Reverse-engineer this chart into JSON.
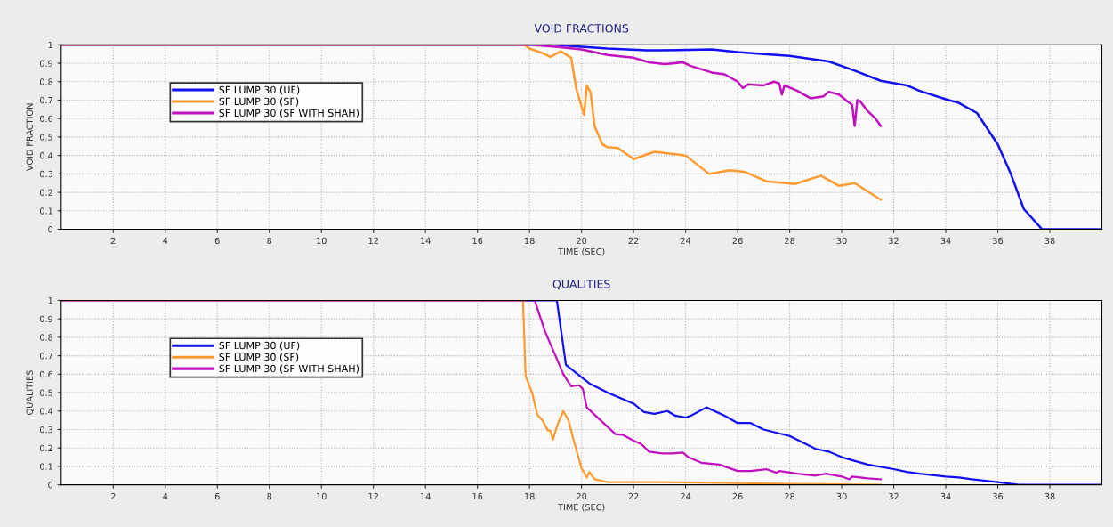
{
  "chart_data": [
    {
      "type": "line",
      "title": "VOID FRACTIONS",
      "xlabel": "TIME (SEC)",
      "ylabel": "VOID FRACTION",
      "xlim": [
        0,
        40
      ],
      "xticks": [
        2,
        4,
        6,
        8,
        10,
        12,
        14,
        16,
        18,
        20,
        22,
        24,
        26,
        28,
        30,
        32,
        34,
        36,
        38
      ],
      "ylim": [
        0,
        1
      ],
      "yticks": [
        0,
        0.1,
        0.2,
        0.3,
        0.4,
        0.5,
        0.6,
        0.7,
        0.8,
        0.9,
        1
      ],
      "grid": true,
      "legend": "top left",
      "line_style": "solid",
      "marker": "none",
      "series": [
        {
          "name": "SF LUMP 30 (UF)",
          "color": "#1010f0",
          "x": [
            0,
            19,
            20,
            21,
            22.5,
            23,
            25,
            26,
            27,
            28,
            29.5,
            30.5,
            31.5,
            32.5,
            33,
            34,
            34.5,
            35.2,
            36,
            36.5,
            37,
            37.7,
            40
          ],
          "values": [
            1,
            1,
            0.99,
            0.98,
            0.97,
            0.97,
            0.975,
            0.96,
            0.95,
            0.94,
            0.91,
            0.86,
            0.805,
            0.78,
            0.75,
            0.705,
            0.685,
            0.63,
            0.46,
            0.3,
            0.11,
            0,
            0
          ]
        },
        {
          "name": "SF LUMP 30 (SF)",
          "color": "#ff9a30",
          "x": [
            0,
            17.8,
            18,
            18.5,
            18.8,
            19.2,
            19.6,
            19.8,
            20.1,
            20.2,
            20.35,
            20.5,
            20.8,
            21,
            21.4,
            22,
            22.8,
            24,
            24.9,
            25.7,
            26.3,
            27.1,
            28.2,
            29.2,
            29.9,
            30.5,
            31.5
          ],
          "values": [
            1,
            1,
            0.98,
            0.955,
            0.935,
            0.965,
            0.93,
            0.76,
            0.62,
            0.78,
            0.74,
            0.56,
            0.46,
            0.445,
            0.44,
            0.38,
            0.42,
            0.4,
            0.3,
            0.32,
            0.31,
            0.26,
            0.245,
            0.29,
            0.235,
            0.25,
            0.16
          ]
        },
        {
          "name": "SF LUMP 30 (SF WITH SHAH)",
          "color": "#c010c0",
          "x": [
            0,
            18,
            19,
            20,
            21,
            22,
            22.6,
            23.2,
            23.9,
            24.2,
            25,
            25.5,
            26,
            26.2,
            26.4,
            27,
            27.4,
            27.6,
            27.7,
            27.8,
            28.3,
            28.8,
            29.3,
            29.5,
            29.9,
            30.2,
            30.4,
            30.5,
            30.6,
            30.7,
            31,
            31.3,
            31.5
          ],
          "values": [
            1,
            1,
            0.99,
            0.975,
            0.945,
            0.93,
            0.905,
            0.895,
            0.905,
            0.885,
            0.85,
            0.84,
            0.8,
            0.765,
            0.785,
            0.78,
            0.8,
            0.79,
            0.73,
            0.78,
            0.75,
            0.71,
            0.72,
            0.745,
            0.73,
            0.695,
            0.675,
            0.56,
            0.7,
            0.695,
            0.64,
            0.6,
            0.56
          ]
        }
      ]
    },
    {
      "type": "line",
      "title": "QUALITIES",
      "xlabel": "TIME (SEC)",
      "ylabel": "QUALITIES",
      "xlim": [
        0,
        40
      ],
      "xticks": [
        2,
        4,
        6,
        8,
        10,
        12,
        14,
        16,
        18,
        20,
        22,
        24,
        26,
        28,
        30,
        32,
        34,
        36,
        38
      ],
      "ylim": [
        0,
        1
      ],
      "yticks": [
        0,
        0.1,
        0.2,
        0.3,
        0.4,
        0.5,
        0.6,
        0.7,
        0.8,
        0.9,
        1
      ],
      "grid": true,
      "legend": "top left",
      "line_style": "solid",
      "marker": "none",
      "series": [
        {
          "name": "SF LUMP 30 (UF)",
          "color": "#1010f0",
          "x": [
            0,
            19.05,
            19.4,
            20.3,
            21,
            22,
            22.4,
            22.8,
            23.3,
            23.6,
            24,
            24.2,
            24.8,
            25.5,
            26,
            26.5,
            27,
            28,
            29,
            29.5,
            30,
            31,
            32,
            32.5,
            33,
            34,
            34.5,
            35,
            36,
            36.8,
            40
          ],
          "values": [
            1,
            1,
            0.65,
            0.55,
            0.5,
            0.44,
            0.395,
            0.385,
            0.4,
            0.375,
            0.365,
            0.375,
            0.42,
            0.375,
            0.335,
            0.335,
            0.3,
            0.265,
            0.195,
            0.18,
            0.15,
            0.11,
            0.085,
            0.07,
            0.06,
            0.045,
            0.04,
            0.03,
            0.015,
            0,
            0
          ]
        },
        {
          "name": "SF LUMP 30 (SF)",
          "color": "#ff9a30",
          "x": [
            0,
            17.75,
            17.85,
            18.1,
            18.3,
            18.5,
            18.7,
            18.8,
            18.9,
            19.1,
            19.3,
            19.5,
            19.7,
            20,
            20.2,
            20.3,
            20.5,
            21,
            23,
            26,
            28,
            31.5
          ],
          "values": [
            1,
            1,
            0.59,
            0.5,
            0.38,
            0.35,
            0.295,
            0.295,
            0.245,
            0.335,
            0.4,
            0.35,
            0.24,
            0.09,
            0.04,
            0.07,
            0.03,
            0.015,
            0.015,
            0.01,
            0.005,
            0
          ]
        },
        {
          "name": "SF LUMP 30 (SF WITH SHAH)",
          "color": "#c010c0",
          "x": [
            0,
            18.2,
            18.6,
            19,
            19.3,
            19.6,
            19.9,
            20.05,
            20.2,
            20.5,
            21,
            21.3,
            21.6,
            22,
            22.3,
            22.6,
            23.1,
            23.5,
            23.9,
            24.1,
            24.6,
            25.3,
            26,
            26.5,
            27.1,
            27.5,
            27.6,
            28.3,
            29,
            29.4,
            30,
            30.3,
            30.4,
            31,
            31.5
          ],
          "values": [
            1,
            1,
            0.83,
            0.7,
            0.6,
            0.535,
            0.54,
            0.52,
            0.42,
            0.38,
            0.315,
            0.275,
            0.27,
            0.24,
            0.22,
            0.18,
            0.17,
            0.17,
            0.175,
            0.15,
            0.12,
            0.11,
            0.075,
            0.075,
            0.085,
            0.065,
            0.075,
            0.06,
            0.05,
            0.06,
            0.045,
            0.03,
            0.045,
            0.035,
            0.03
          ]
        }
      ]
    }
  ]
}
